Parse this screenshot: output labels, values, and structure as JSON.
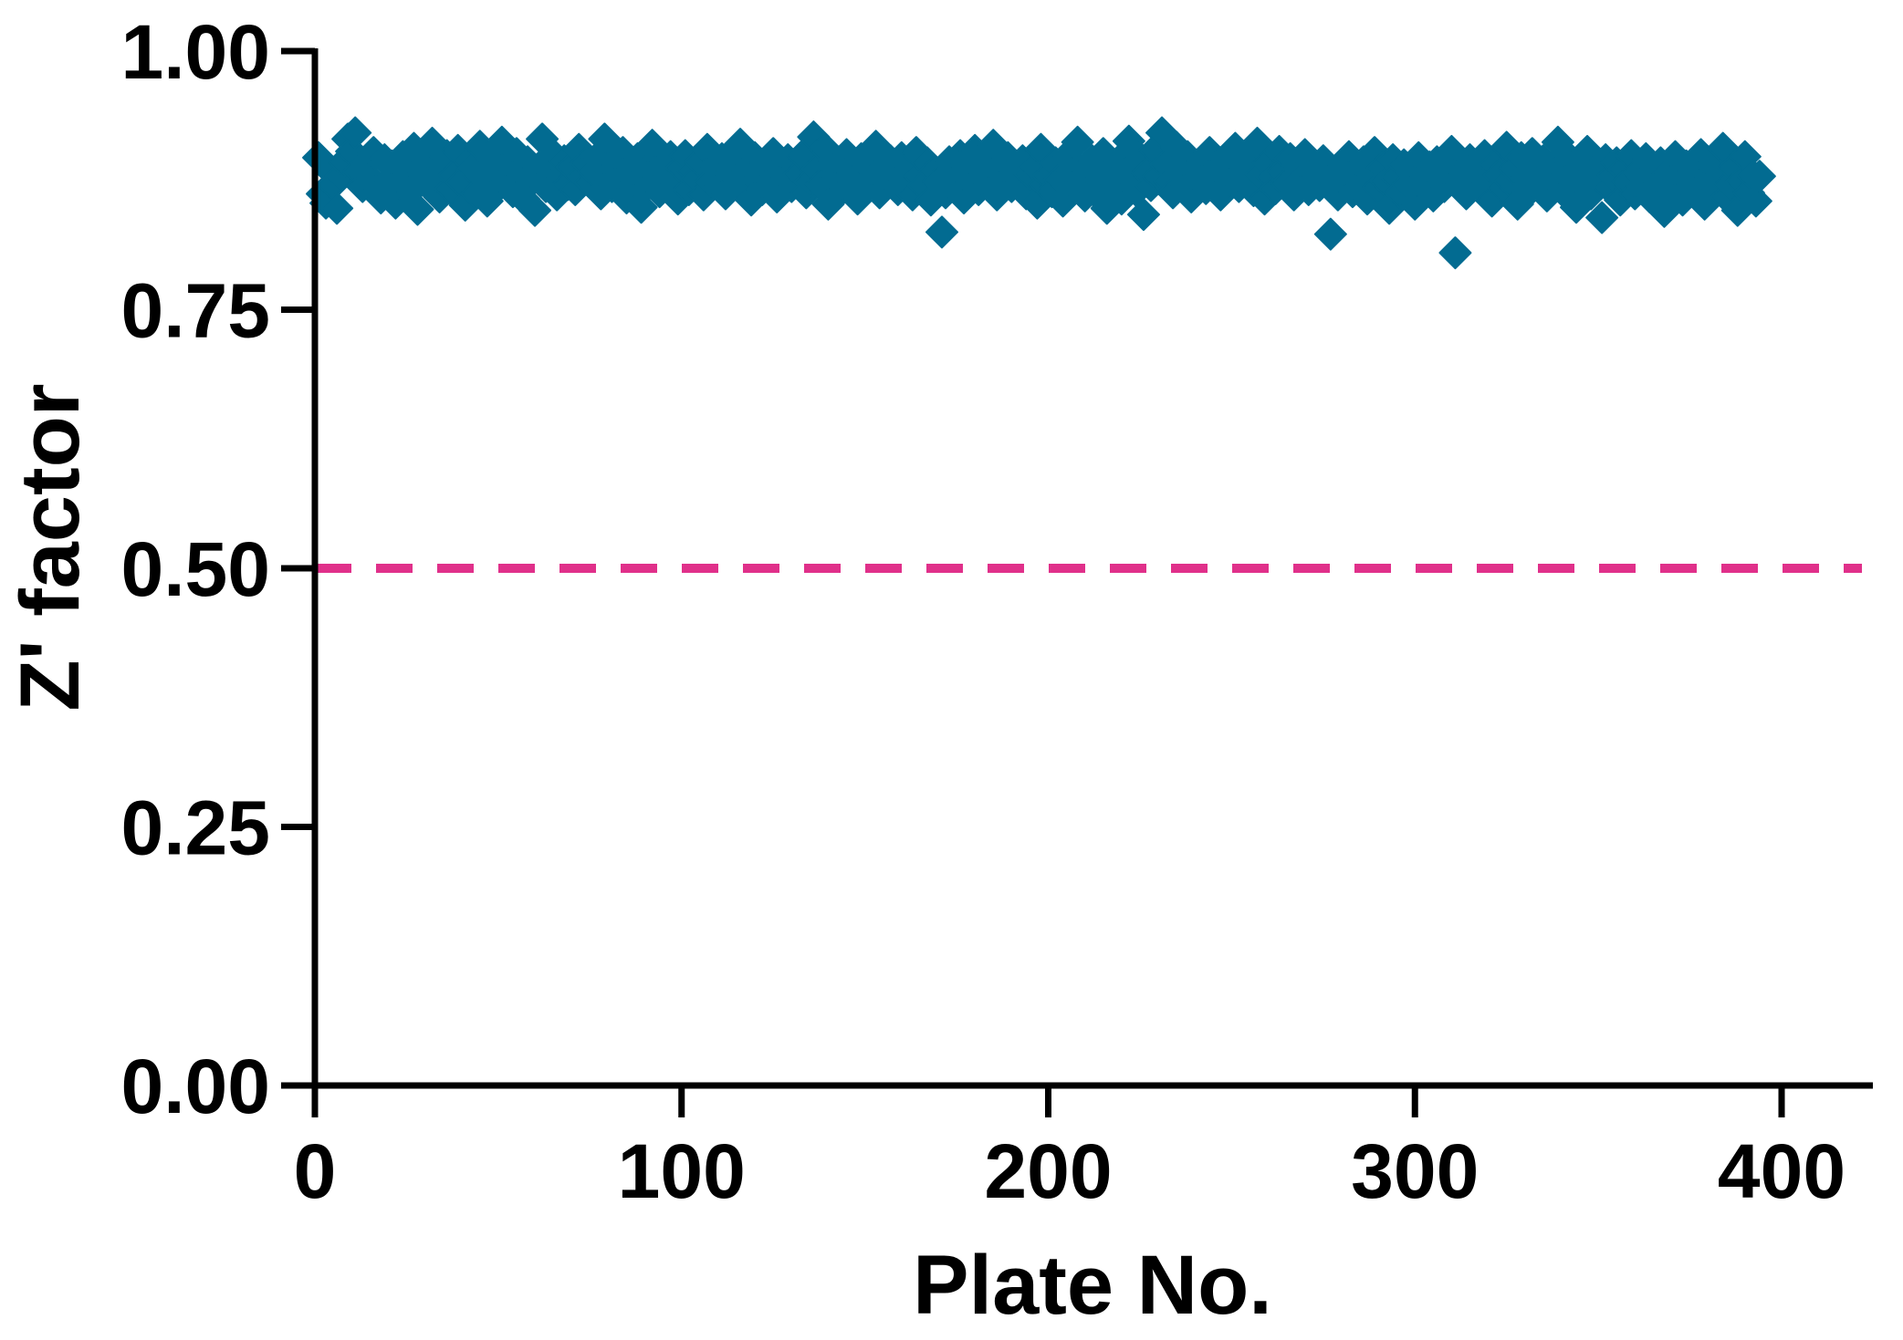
{
  "chart_data": {
    "type": "scatter",
    "title": "",
    "xlabel": "Plate No.",
    "ylabel": "Z' factor",
    "xlim": [
      0,
      425
    ],
    "ylim": [
      0,
      1.0
    ],
    "xticks": [
      0,
      100,
      200,
      300,
      400
    ],
    "xtick_labels": [
      "0",
      "100",
      "200",
      "300",
      "400"
    ],
    "yticks": [
      0,
      0.25,
      0.5,
      0.75,
      1.0
    ],
    "ytick_labels": [
      "0.00",
      "0.25",
      "0.50",
      "0.75",
      "1.00"
    ],
    "grid": false,
    "marker": "diamond",
    "threshold": {
      "value": 0.5,
      "style": "dashed"
    },
    "colors": {
      "points": "#026b91",
      "threshold": "#e0308a",
      "axes": "#000000"
    },
    "series": [
      {
        "name": "Z' factor",
        "x_start": 1,
        "x_step": 1,
        "values": [
          0.897,
          0.862,
          0.853,
          0.885,
          0.871,
          0.848,
          0.879,
          0.893,
          0.915,
          0.903,
          0.921,
          0.884,
          0.869,
          0.891,
          0.877,
          0.902,
          0.866,
          0.858,
          0.895,
          0.874,
          0.889,
          0.853,
          0.872,
          0.898,
          0.881,
          0.864,
          0.906,
          0.847,
          0.883,
          0.892,
          0.87,
          0.911,
          0.876,
          0.859,
          0.888,
          0.899,
          0.867,
          0.88,
          0.904,
          0.873,
          0.851,
          0.894,
          0.886,
          0.862,
          0.908,
          0.878,
          0.855,
          0.897,
          0.883,
          0.869,
          0.912,
          0.875,
          0.891,
          0.864,
          0.901,
          0.88,
          0.857,
          0.893,
          0.874,
          0.846,
          0.887,
          0.915,
          0.869,
          0.882,
          0.9,
          0.861,
          0.878,
          0.894,
          0.871,
          0.888,
          0.866,
          0.905,
          0.879,
          0.892,
          0.873,
          0.884,
          0.897,
          0.862,
          0.915,
          0.876,
          0.869,
          0.89,
          0.881,
          0.902,
          0.858,
          0.887,
          0.874,
          0.896,
          0.849,
          0.883,
          0.871,
          0.909,
          0.878,
          0.864,
          0.893,
          0.88,
          0.898,
          0.872,
          0.857,
          0.887,
          0.899,
          0.866,
          0.884,
          0.876,
          0.893,
          0.861,
          0.905,
          0.874,
          0.888,
          0.87,
          0.896,
          0.862,
          0.88,
          0.891,
          0.875,
          0.91,
          0.868,
          0.885,
          0.856,
          0.897,
          0.879,
          0.866,
          0.892,
          0.873,
          0.901,
          0.859,
          0.884,
          0.877,
          0.895,
          0.869,
          0.888,
          0.881,
          0.899,
          0.863,
          0.874,
          0.917,
          0.886,
          0.871,
          0.906,
          0.852,
          0.893,
          0.878,
          0.884,
          0.867,
          0.9,
          0.882,
          0.874,
          0.857,
          0.896,
          0.869,
          0.889,
          0.876,
          0.908,
          0.863,
          0.885,
          0.871,
          0.894,
          0.88,
          0.866,
          0.897,
          0.875,
          0.888,
          0.861,
          0.902,
          0.879,
          0.87,
          0.892,
          0.856,
          0.884,
          0.874,
          0.825,
          0.863,
          0.893,
          0.877,
          0.868,
          0.899,
          0.858,
          0.887,
          0.874,
          0.904,
          0.866,
          0.882,
          0.891,
          0.872,
          0.909,
          0.861,
          0.886,
          0.878,
          0.897,
          0.869,
          0.883,
          0.875,
          0.894,
          0.862,
          0.881,
          0.888,
          0.853,
          0.905,
          0.871,
          0.879,
          0.864,
          0.892,
          0.876,
          0.855,
          0.898,
          0.883,
          0.869,
          0.912,
          0.874,
          0.86,
          0.887,
          0.894,
          0.863,
          0.878,
          0.901,
          0.848,
          0.884,
          0.871,
          0.893,
          0.857,
          0.888,
          0.913,
          0.876,
          0.865,
          0.897,
          0.842,
          0.882,
          0.87,
          0.904,
          0.879,
          0.921,
          0.89,
          0.874,
          0.863,
          0.907,
          0.885,
          0.871,
          0.898,
          0.859,
          0.886,
          0.88,
          0.894,
          0.867,
          0.902,
          0.877,
          0.889,
          0.861,
          0.895,
          0.874,
          0.883,
          0.906,
          0.869,
          0.887,
          0.876,
          0.899,
          0.865,
          0.911,
          0.881,
          0.857,
          0.892,
          0.878,
          0.867,
          0.903,
          0.884,
          0.872,
          0.896,
          0.861,
          0.888,
          0.875,
          0.9,
          0.866,
          0.892,
          0.879,
          0.87,
          0.894,
          0.882,
          0.823,
          0.873,
          0.861,
          0.889,
          0.876,
          0.898,
          0.864,
          0.885,
          0.871,
          0.893,
          0.857,
          0.88,
          0.902,
          0.868,
          0.887,
          0.874,
          0.848,
          0.895,
          0.878,
          0.863,
          0.89,
          0.871,
          0.883,
          0.852,
          0.897,
          0.866,
          0.879,
          0.888,
          0.86,
          0.893,
          0.874,
          0.869,
          0.886,
          0.903,
          0.805,
          0.872,
          0.881,
          0.862,
          0.895,
          0.877,
          0.888,
          0.866,
          0.899,
          0.873,
          0.855,
          0.891,
          0.88,
          0.868,
          0.907,
          0.874,
          0.886,
          0.852,
          0.897,
          0.879,
          0.864,
          0.901,
          0.883,
          0.87,
          0.894,
          0.86,
          0.888,
          0.876,
          0.912,
          0.866,
          0.881,
          0.897,
          0.872,
          0.849,
          0.889,
          0.877,
          0.903,
          0.862,
          0.884,
          0.871,
          0.839,
          0.895,
          0.868,
          0.88,
          0.892,
          0.856,
          0.886,
          0.874,
          0.899,
          0.862,
          0.883,
          0.87,
          0.896,
          0.859,
          0.887,
          0.873,
          0.892,
          0.845,
          0.881,
          0.865,
          0.898,
          0.876,
          0.856,
          0.889,
          0.871,
          0.884,
          0.861,
          0.9,
          0.852,
          0.878,
          0.893,
          0.866,
          0.882,
          0.906,
          0.859,
          0.872,
          0.887,
          0.846,
          0.874,
          0.898,
          0.863,
          0.88,
          0.855,
          0.879
        ]
      }
    ]
  }
}
